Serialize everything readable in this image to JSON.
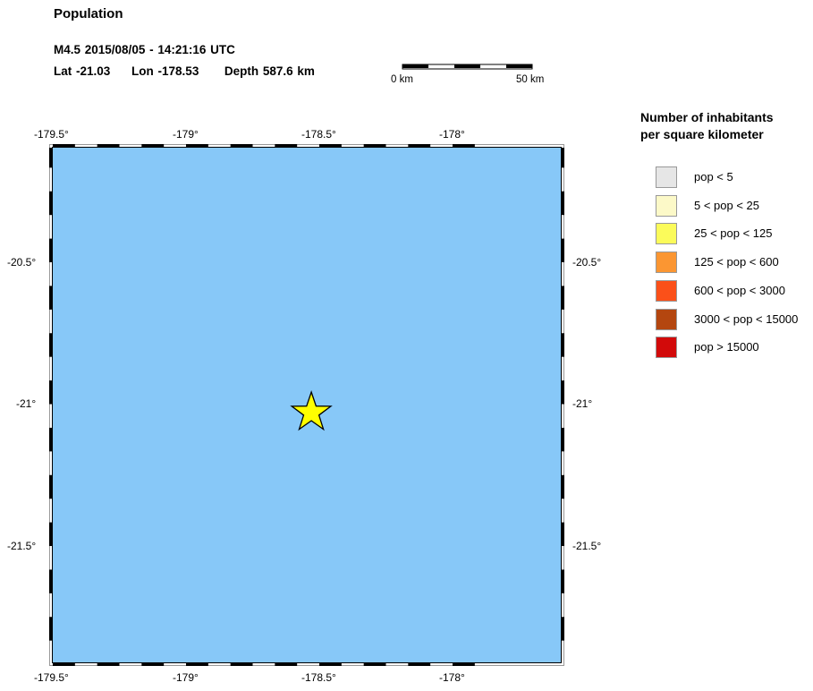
{
  "title": "Population",
  "event": {
    "line1": "M4.5  2015/08/05 - 14:21:16 UTC",
    "lat": "Lat -21.03",
    "lon": "Lon -178.53",
    "depth": "Depth 587.6 km"
  },
  "scalebar": {
    "start": "0 km",
    "end": "50 km"
  },
  "map": {
    "ocean_color": "#87c8f8",
    "lon_ticks": [
      "-179.5°",
      "-179°",
      "-178.5°",
      "-178°"
    ],
    "lat_ticks": [
      "-20.5°",
      "-21°",
      "-21.5°"
    ],
    "epicenter": {
      "lat": -21.03,
      "lon": -178.53,
      "marker": "star-icon",
      "color": "#ffff00"
    }
  },
  "legend": {
    "title1": "Number of inhabitants",
    "title2": "per square kilometer",
    "items": [
      {
        "label": "pop < 5",
        "color": "#e6e6e6"
      },
      {
        "label": "5 < pop < 25",
        "color": "#fcf9c8"
      },
      {
        "label": "25 < pop < 125",
        "color": "#fbfb5a"
      },
      {
        "label": "125 < pop < 600",
        "color": "#fb9632"
      },
      {
        "label": "600 < pop < 3000",
        "color": "#fb5019"
      },
      {
        "label": "3000 < pop < 15000",
        "color": "#b4460f"
      },
      {
        "label": "pop > 15000",
        "color": "#d20a0a"
      }
    ]
  }
}
